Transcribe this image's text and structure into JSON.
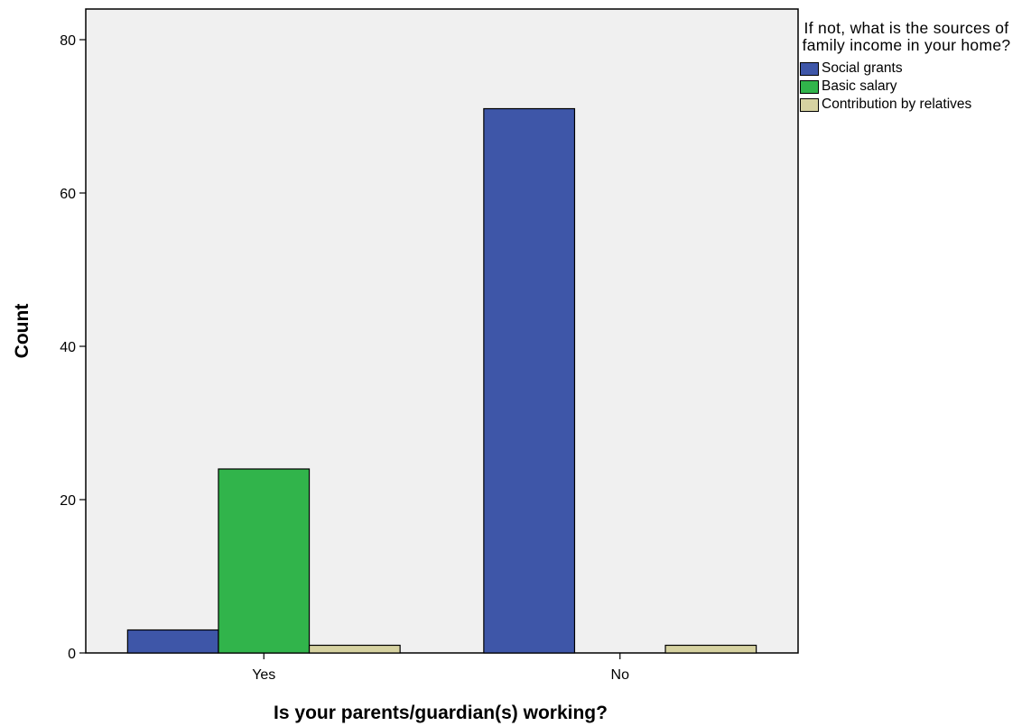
{
  "chart_data": {
    "type": "bar",
    "xlabel": "Is your parents/guardian(s) working?",
    "ylabel": "Count",
    "categories": [
      "Yes",
      "No"
    ],
    "ylim": [
      0,
      84
    ],
    "yticks": [
      0,
      20,
      40,
      60,
      80
    ],
    "legend": {
      "title": "If not, what is the sources of family income in your home?",
      "placement": "right"
    },
    "series": [
      {
        "name": "Social grants",
        "color": "#3e56a8",
        "values": [
          3,
          71
        ]
      },
      {
        "name": "Basic salary",
        "color": "#31b44b",
        "values": [
          24,
          0
        ]
      },
      {
        "name": "Contribution by relatives",
        "color": "#d6d2a1",
        "values": [
          1,
          1
        ]
      }
    ],
    "plot_background": "#f0f0f0",
    "grid": false
  }
}
